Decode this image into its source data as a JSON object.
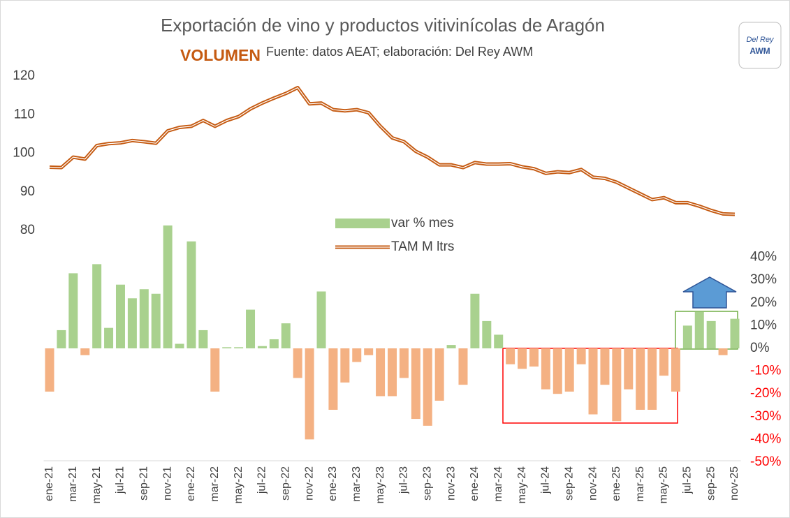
{
  "chart_data": {
    "type": "combo",
    "title": "Exportación de vino y productos vitivinícolas de Aragón",
    "subtitle": "VOLUMEN",
    "source": "Fuente: datos AEAT; elaboración: Del Rey AWM",
    "logo": {
      "top": "Del Rey",
      "bottom": "AWM"
    },
    "categories": [
      "ene-21",
      null,
      "mar-21",
      null,
      "may-21",
      null,
      "jul-21",
      null,
      "sep-21",
      null,
      "nov-21",
      null,
      "ene-22",
      null,
      "mar-22",
      null,
      "may-22",
      null,
      "jul-22",
      null,
      "sep-22",
      null,
      "nov-22",
      null,
      "ene-23",
      null,
      "mar-23",
      null,
      "may-23",
      null,
      "jul-23",
      null,
      "sep-23",
      null,
      "nov-23",
      null,
      "ene-24",
      null,
      "mar-24",
      null,
      "may-24",
      null,
      "jul-24",
      null,
      "sep-24",
      null,
      "nov-24",
      null,
      "ene-25",
      null,
      "mar-25",
      null,
      "may-25",
      null,
      "jul-25",
      null,
      "sep-25",
      null,
      "nov-25"
    ],
    "series": [
      {
        "name": "var % mes",
        "type": "bar",
        "axis": "y2",
        "color": "#a9d18e",
        "negative_color": "#f4b183",
        "values": [
          -19,
          8,
          33,
          -3,
          37,
          9,
          28,
          22,
          26,
          24,
          54,
          2,
          47,
          8,
          -19,
          0.5,
          0.5,
          17,
          1,
          4,
          11,
          -13,
          -40,
          25,
          -27,
          -15,
          -6,
          -3,
          -21,
          -21,
          -13,
          -31,
          -34,
          -23,
          1.5,
          -16,
          24,
          12,
          6,
          -7,
          -9,
          -8,
          -18,
          -20,
          -19,
          -7,
          -29,
          -16,
          -32,
          -18,
          -27,
          -27,
          -12,
          -19,
          10,
          16,
          12,
          -3,
          13
        ]
      },
      {
        "name": "TAM M ltrs",
        "type": "line",
        "axis": "y",
        "color": "#c55a11",
        "values": [
          96.4,
          96.3,
          99,
          98.5,
          102,
          102.5,
          102.7,
          103.3,
          103,
          102.6,
          105.8,
          106.7,
          107,
          108.5,
          107,
          108.5,
          109.5,
          111.5,
          113,
          114.3,
          115.5,
          117,
          112.8,
          113,
          111.3,
          111,
          111.3,
          110.5,
          107,
          104,
          103,
          100.5,
          99,
          97,
          97,
          96.3,
          97.6,
          97.2,
          97.2,
          97.3,
          96.5,
          96,
          94.8,
          95.2,
          95,
          95.8,
          93.8,
          93.5,
          92.5,
          91,
          89.5,
          88,
          88.5,
          87.2,
          87.2,
          86.3,
          85.2,
          84.3,
          84.2
        ]
      }
    ],
    "ylim": [
      20,
      132
    ],
    "yticks": [
      80,
      90,
      100,
      110,
      120
    ],
    "y2lim": [
      -50,
      140
    ],
    "y2ticks": [
      {
        "value": 40,
        "label": "40%"
      },
      {
        "value": 30,
        "label": "30%"
      },
      {
        "value": 20,
        "label": "20%"
      },
      {
        "value": 10,
        "label": "10%"
      },
      {
        "value": 0,
        "label": "0%"
      },
      {
        "value": -10,
        "label": "-10%"
      },
      {
        "value": -20,
        "label": "-20%"
      },
      {
        "value": -30,
        "label": "-30%"
      },
      {
        "value": -40,
        "label": "-40%"
      },
      {
        "value": -50,
        "label": "-50%"
      }
    ],
    "y2_negative_color": "#ff0000",
    "grid": false
  }
}
